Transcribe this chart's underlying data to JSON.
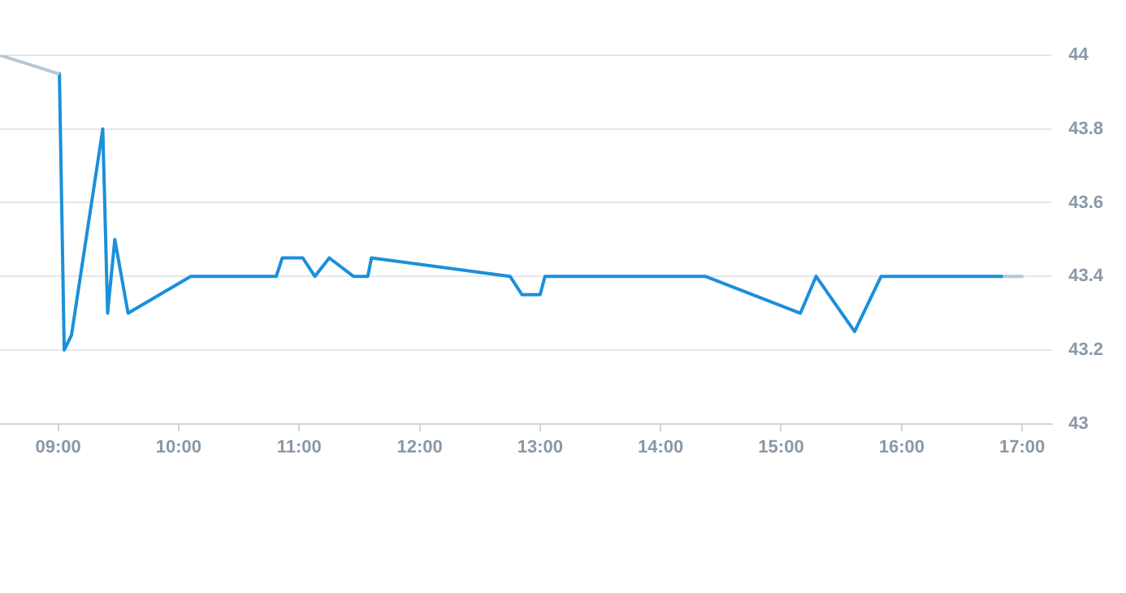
{
  "chart_data": {
    "type": "line",
    "xlim": [
      8.517,
      17.25
    ],
    "ylim": [
      43,
      44
    ],
    "xticks": [
      {
        "value": 9,
        "label": "09:00"
      },
      {
        "value": 10,
        "label": "10:00"
      },
      {
        "value": 11,
        "label": "11:00"
      },
      {
        "value": 12,
        "label": "12:00"
      },
      {
        "value": 13,
        "label": "13:00"
      },
      {
        "value": 14,
        "label": "14:00"
      },
      {
        "value": 15,
        "label": "15:00"
      },
      {
        "value": 16,
        "label": "16:00"
      },
      {
        "value": 17,
        "label": "17:00"
      }
    ],
    "yticks": [
      43,
      43.2,
      43.4,
      43.6,
      43.8,
      44
    ],
    "grid": "y",
    "legend": false,
    "marker": "none",
    "line_style": "solid",
    "series": [
      {
        "color": "#b8c7d6",
        "x": [
          8.517,
          9.0
        ],
        "values": [
          44.0,
          43.95
        ]
      },
      {
        "color": "#1a90db",
        "x": [
          9.0,
          9.01,
          9.05,
          9.11,
          9.37,
          9.41,
          9.47,
          9.58,
          10.1,
          10.81,
          10.86,
          11.03,
          11.13,
          11.25,
          11.45,
          11.57,
          11.6,
          12.75,
          12.85,
          13.0,
          13.04,
          14.37,
          15.16,
          15.29,
          15.61,
          15.83,
          16.83
        ],
        "values": [
          43.95,
          43.95,
          43.2,
          43.24,
          43.8,
          43.3,
          43.5,
          43.3,
          43.4,
          43.4,
          43.45,
          43.45,
          43.4,
          43.45,
          43.4,
          43.4,
          43.45,
          43.4,
          43.35,
          43.35,
          43.4,
          43.4,
          43.3,
          43.4,
          43.25,
          43.4,
          43.4
        ]
      },
      {
        "color": "#b8c7d6",
        "x": [
          16.83,
          17.0
        ],
        "values": [
          43.4,
          43.4
        ]
      }
    ]
  }
}
